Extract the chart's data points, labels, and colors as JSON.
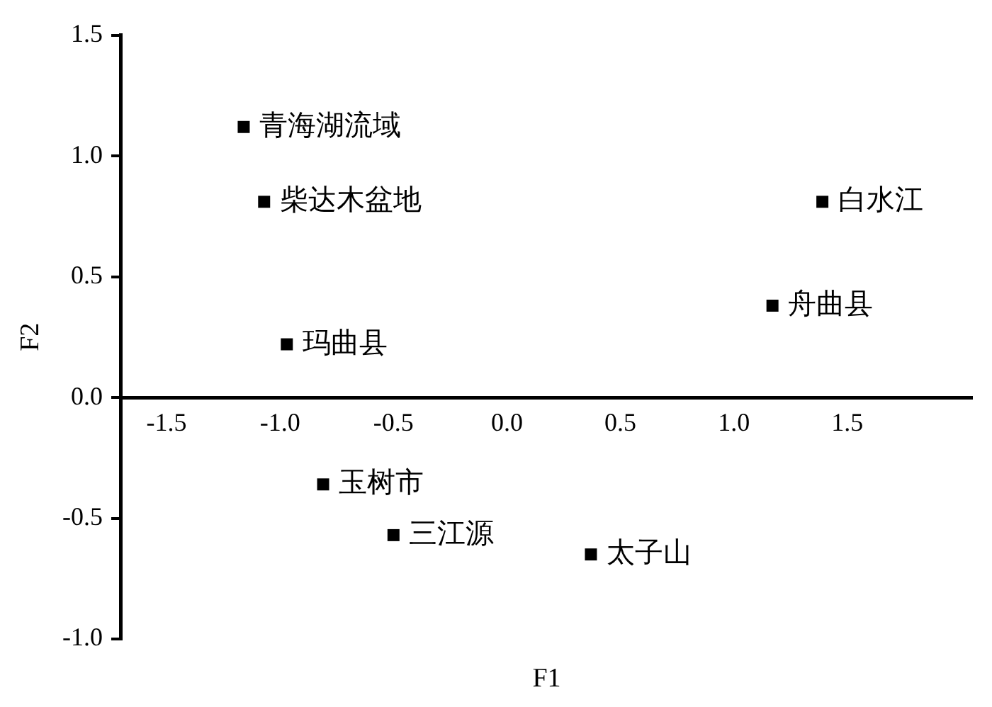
{
  "chart_data": {
    "type": "scatter",
    "xlabel": "F1",
    "ylabel": "F2",
    "series": [
      {
        "color": "#000000",
        "x": [
          -1.16,
          -1.07,
          -0.97,
          1.39,
          1.17,
          -0.81,
          -0.5,
          0.37
        ],
        "values": [
          1.12,
          0.81,
          0.22,
          0.81,
          0.38,
          -0.36,
          -0.57,
          -0.65
        ]
      }
    ],
    "annotations": [
      {
        "text": "青海湖流域",
        "x": -1.16,
        "y": 1.12
      },
      {
        "text": "柴达木盆地",
        "x": -1.07,
        "y": 0.81
      },
      {
        "text": "玛曲县",
        "x": -0.97,
        "y": 0.22
      },
      {
        "text": "白水江",
        "x": 1.39,
        "y": 0.81
      },
      {
        "text": "舟曲县",
        "x": 1.17,
        "y": 0.38
      },
      {
        "text": "玉树市",
        "x": -0.81,
        "y": -0.36
      },
      {
        "text": "三江源",
        "x": -0.5,
        "y": -0.57
      },
      {
        "text": "太子山",
        "x": 0.37,
        "y": -0.65
      }
    ],
    "xlim": [
      -1.7,
      2.05
    ],
    "xticks": [
      -1.5,
      {
        "value": -1,
        "label": "-1.0"
      },
      -0.5,
      {
        "value": 0,
        "label": "0.0"
      },
      0.5,
      {
        "value": 1,
        "label": "1.0"
      },
      1.5
    ],
    "ylim": [
      -1.0,
      1.5
    ],
    "yticks": [
      {
        "value": -1,
        "label": "-1.0"
      },
      -0.5,
      {
        "value": 0,
        "label": "0.0"
      },
      0.5,
      {
        "value": 1,
        "label": "1.0"
      },
      1.5
    ],
    "marker": "square",
    "grid": false,
    "legend": false
  }
}
